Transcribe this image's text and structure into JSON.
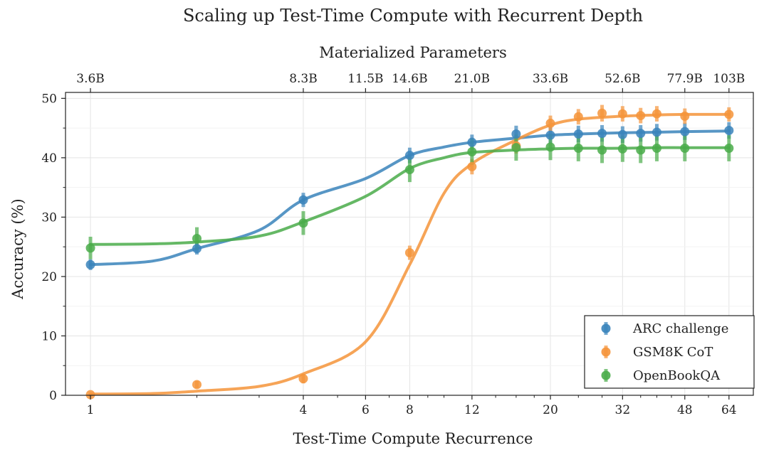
{
  "chart_data": {
    "type": "line",
    "title": "Scaling up Test-Time Compute with Recurrent Depth",
    "xlabel": "Test-Time Compute Recurrence",
    "ylabel": "Accuracy (%)",
    "top_xlabel": "Materialized Parameters",
    "x_scale": "log",
    "xlim": [
      0.85,
      75
    ],
    "ylim": [
      0,
      51
    ],
    "x_ticks": [
      1,
      4,
      6,
      8,
      12,
      20,
      32,
      48,
      64
    ],
    "x_tick_labels": [
      "1",
      "4",
      "6",
      "8",
      "12",
      "20",
      "32",
      "48",
      "64"
    ],
    "y_ticks": [
      0,
      10,
      20,
      30,
      40,
      50
    ],
    "y_tick_labels": [
      "0",
      "10",
      "20",
      "30",
      "40",
      "50"
    ],
    "top_ticks": [
      {
        "x": 1,
        "label": "3.6B"
      },
      {
        "x": 4,
        "label": "8.3B"
      },
      {
        "x": 6,
        "label": "11.5B"
      },
      {
        "x": 8,
        "label": "14.6B"
      },
      {
        "x": 12,
        "label": "21.0B"
      },
      {
        "x": 20,
        "label": "33.6B"
      },
      {
        "x": 32,
        "label": "52.6B"
      },
      {
        "x": 48,
        "label": "77.9B"
      },
      {
        "x": 64,
        "label": "103B"
      }
    ],
    "grid": true,
    "legend_position": "bottom-right",
    "x": [
      1,
      2,
      4,
      8,
      12,
      16,
      20,
      24,
      28,
      32,
      36,
      40,
      48,
      64
    ],
    "series": [
      {
        "name": "ARC challenge",
        "color": "#3a84bb",
        "values": [
          22.0,
          24.7,
          32.9,
          40.4,
          42.6,
          44.0,
          43.8,
          44.0,
          44.1,
          43.9,
          44.1,
          44.3,
          44.4,
          44.6
        ],
        "errors": [
          0.9,
          1.0,
          1.2,
          1.3,
          1.3,
          1.4,
          1.4,
          1.4,
          1.4,
          1.4,
          1.4,
          1.4,
          1.4,
          1.4
        ],
        "fit": [
          22.0,
          22.6,
          24.7,
          27.8,
          32.9,
          36.5,
          40.4,
          41.8,
          42.6,
          43.3,
          43.8,
          44.0,
          44.2,
          44.3,
          44.4,
          44.5
        ]
      },
      {
        "name": "GSM8K CoT",
        "color": "#f5943a",
        "values": [
          0.1,
          1.8,
          2.8,
          24.0,
          38.5,
          42.0,
          45.8,
          46.9,
          47.5,
          47.4,
          47.1,
          47.4,
          47.0,
          47.3
        ],
        "errors": [
          0.3,
          0.6,
          0.8,
          1.2,
          1.3,
          1.3,
          1.3,
          1.3,
          1.4,
          1.3,
          1.3,
          1.3,
          1.3,
          1.2
        ],
        "fit": [
          0.2,
          0.3,
          0.7,
          1.5,
          3.6,
          9.0,
          22.0,
          34.0,
          39.0,
          43.0,
          45.5,
          46.5,
          47.0,
          47.2,
          47.3,
          47.3
        ]
      },
      {
        "name": "OpenBookQA",
        "color": "#4aac4a",
        "values": [
          24.8,
          26.4,
          29.0,
          38.0,
          41.0,
          41.7,
          41.8,
          41.6,
          41.3,
          41.5,
          41.3,
          41.6,
          41.6,
          41.6
        ],
        "errors": [
          1.9,
          1.9,
          2.0,
          2.1,
          2.2,
          2.2,
          2.2,
          2.2,
          2.2,
          2.2,
          2.2,
          2.2,
          2.2,
          2.2
        ],
        "fit": [
          25.4,
          25.5,
          25.8,
          26.8,
          29.2,
          33.5,
          38.2,
          40.0,
          40.9,
          41.3,
          41.5,
          41.6,
          41.6,
          41.7,
          41.7,
          41.7
        ]
      }
    ],
    "fit_x": [
      1,
      1.5,
      2,
      3,
      4,
      6,
      8,
      10,
      12,
      16,
      20,
      24,
      32,
      40,
      48,
      64
    ]
  }
}
